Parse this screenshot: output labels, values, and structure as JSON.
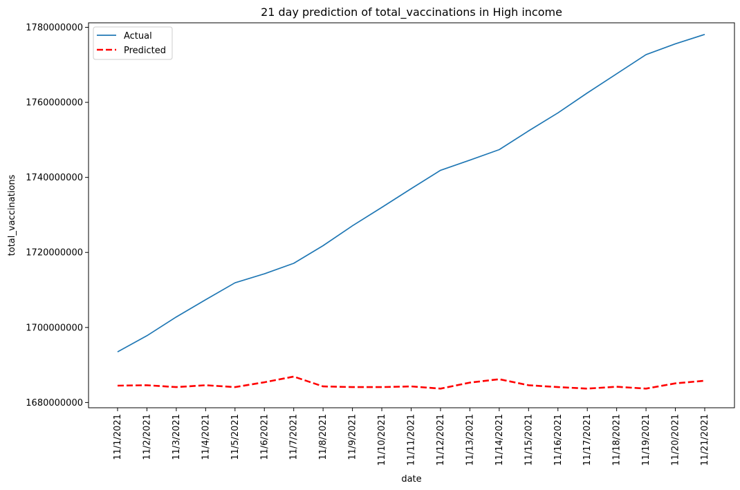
{
  "chart_data": {
    "type": "line",
    "title": "21 day prediction of total_vaccinations in High income",
    "xlabel": "date",
    "ylabel": "total_vaccinations",
    "categories": [
      "11/1/2021",
      "11/2/2021",
      "11/3/2021",
      "11/4/2021",
      "11/5/2021",
      "11/6/2021",
      "11/7/2021",
      "11/8/2021",
      "11/9/2021",
      "11/10/2021",
      "11/11/2021",
      "11/12/2021",
      "11/13/2021",
      "11/14/2021",
      "11/15/2021",
      "11/16/2021",
      "11/17/2021",
      "11/18/2021",
      "11/19/2021",
      "11/20/2021",
      "11/21/2021"
    ],
    "y_ticks": [
      1680000000,
      1700000000,
      1720000000,
      1740000000,
      1760000000,
      1780000000
    ],
    "y_tick_labels": [
      "1680000000",
      "1700000000",
      "1720000000",
      "1740000000",
      "1760000000",
      "1780000000"
    ],
    "ylim": [
      1678600000,
      1781200000
    ],
    "grid": false,
    "legend_position": "top-left",
    "series": [
      {
        "name": "Actual",
        "color": "#1f77b4",
        "style": "solid",
        "values": [
          1693500000,
          1697800000,
          1702800000,
          1707400000,
          1711900000,
          1714300000,
          1717100000,
          1721800000,
          1727100000,
          1732000000,
          1737000000,
          1741900000,
          1744600000,
          1747400000,
          1752400000,
          1757200000,
          1762500000,
          1767600000,
          1772700000,
          1775600000,
          1778100000
        ]
      },
      {
        "name": "Predicted",
        "color": "#ff0000",
        "style": "dashed",
        "values": [
          1684500000,
          1684600000,
          1684100000,
          1684600000,
          1684100000,
          1685400000,
          1686900000,
          1684300000,
          1684100000,
          1684100000,
          1684300000,
          1683700000,
          1685300000,
          1686200000,
          1684600000,
          1684100000,
          1683700000,
          1684200000,
          1683700000,
          1685100000,
          1685800000
        ]
      }
    ]
  }
}
